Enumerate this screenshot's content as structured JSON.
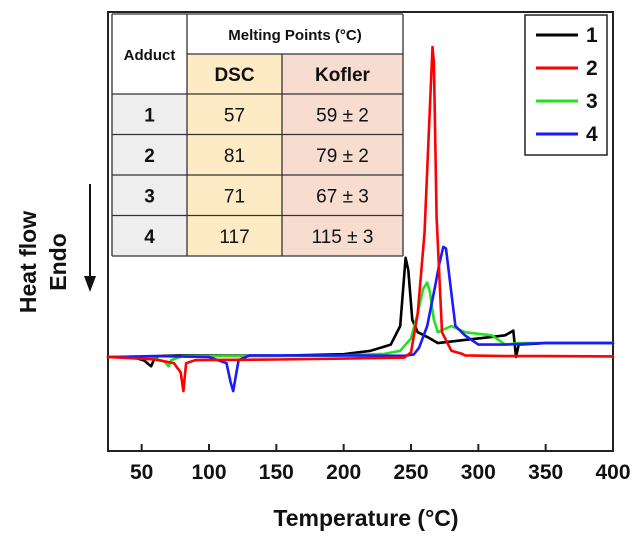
{
  "chart_data": {
    "type": "line",
    "xlabel": "Temperature (°C)",
    "ylabel_lines": [
      "Heat flow",
      "Endo"
    ],
    "xlim": [
      25,
      400
    ],
    "x_ticks": [
      "50",
      "100",
      "150",
      "200",
      "250",
      "300",
      "350",
      "400"
    ],
    "y_ticks_shown": false,
    "grid": false,
    "legend_position": "top-right",
    "series": [
      {
        "name": "1",
        "color": "#000000",
        "x": [
          25,
          45,
          52,
          57,
          59,
          62,
          80,
          150,
          200,
          220,
          235,
          242,
          246,
          248,
          251,
          255,
          262,
          270,
          290,
          310,
          320,
          326,
          328,
          330,
          350,
          400
        ],
        "y": [
          0.0,
          -0.2,
          -1.2,
          -3.0,
          -1.0,
          0.3,
          0.5,
          0.4,
          0.9,
          2.0,
          4.0,
          10.0,
          32.0,
          28.0,
          12.0,
          8.0,
          6.5,
          4.5,
          5.5,
          6.5,
          7.0,
          8.5,
          0.0,
          4.0,
          4.5,
          4.5
        ]
      },
      {
        "name": "2",
        "color": "#ff0000",
        "x": [
          25,
          60,
          74,
          79,
          81,
          83,
          90,
          150,
          200,
          245,
          250,
          255,
          260,
          263,
          266,
          267,
          269,
          273,
          280,
          288,
          290,
          320,
          350,
          400
        ],
        "y": [
          0.0,
          -0.8,
          -2.0,
          -5.0,
          -11.0,
          -2.0,
          -1.0,
          -0.8,
          -0.5,
          -0.2,
          1.5,
          14.0,
          40.0,
          70.0,
          100.0,
          95.0,
          45.0,
          8.0,
          2.0,
          1.0,
          0.5,
          0.3,
          0.3,
          0.2
        ]
      },
      {
        "name": "3",
        "color": "#22e022",
        "x": [
          25,
          60,
          67,
          70,
          72,
          80,
          150,
          200,
          230,
          242,
          250,
          255,
          259,
          262,
          264,
          267,
          270,
          275,
          280,
          290,
          300,
          310,
          320,
          330,
          350,
          400
        ],
        "y": [
          0.0,
          -0.5,
          -1.5,
          -3.0,
          -1.0,
          0.3,
          0.3,
          0.5,
          1.0,
          2.0,
          6.0,
          14.0,
          22.0,
          24.0,
          21.0,
          12.0,
          8.0,
          9.0,
          10.0,
          8.0,
          7.5,
          7.0,
          4.0,
          4.5,
          4.5,
          4.5
        ]
      },
      {
        "name": "4",
        "color": "#1a1aff",
        "x": [
          25,
          60,
          100,
          113,
          116,
          118,
          122,
          130,
          200,
          245,
          252,
          256,
          262,
          268,
          271,
          274,
          276,
          279,
          283,
          290,
          300,
          320,
          350,
          400
        ],
        "y": [
          0.0,
          0.3,
          0.0,
          -2.0,
          -8.0,
          -11.0,
          -1.0,
          0.5,
          0.5,
          0.4,
          0.8,
          3.0,
          10.0,
          23.0,
          30.0,
          35.5,
          35.0,
          24.0,
          10.0,
          7.0,
          4.0,
          4.0,
          4.5,
          4.5
        ]
      }
    ],
    "inset_table": {
      "header_adduct": "Adduct",
      "header_group": "Melting Points (°C)",
      "header_dsc": "DSC",
      "header_kofler": "Kofler",
      "rows": [
        {
          "adduct": "1",
          "dsc": "57",
          "kofler": "59 ± 2"
        },
        {
          "adduct": "2",
          "dsc": "81",
          "kofler": "79 ± 2"
        },
        {
          "adduct": "3",
          "dsc": "71",
          "kofler": "67 ± 3"
        },
        {
          "adduct": "4",
          "dsc": "117",
          "kofler": "115 ± 3"
        }
      ]
    }
  }
}
